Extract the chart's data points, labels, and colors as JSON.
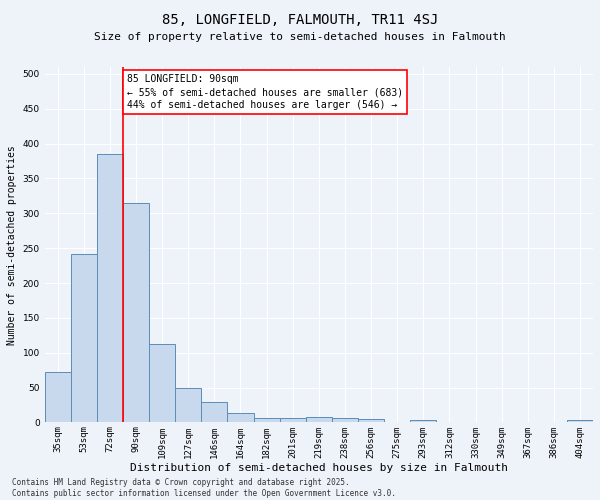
{
  "title1": "85, LONGFIELD, FALMOUTH, TR11 4SJ",
  "title2": "Size of property relative to semi-detached houses in Falmouth",
  "xlabel": "Distribution of semi-detached houses by size in Falmouth",
  "ylabel": "Number of semi-detached properties",
  "annotation_title": "85 LONGFIELD: 90sqm",
  "annotation_line1": "← 55% of semi-detached houses are smaller (683)",
  "annotation_line2": "44% of semi-detached houses are larger (546) →",
  "footer": "Contains HM Land Registry data © Crown copyright and database right 2025.\nContains public sector information licensed under the Open Government Licence v3.0.",
  "bar_categories": [
    "35sqm",
    "53sqm",
    "72sqm",
    "90sqm",
    "109sqm",
    "127sqm",
    "146sqm",
    "164sqm",
    "182sqm",
    "201sqm",
    "219sqm",
    "238sqm",
    "256sqm",
    "275sqm",
    "293sqm",
    "312sqm",
    "330sqm",
    "349sqm",
    "367sqm",
    "386sqm",
    "404sqm"
  ],
  "bar_values": [
    73,
    241,
    385,
    315,
    113,
    50,
    30,
    13,
    7,
    7,
    8,
    6,
    5,
    0,
    3,
    1,
    0,
    0,
    0,
    0,
    3
  ],
  "bar_color": "#c8d9ee",
  "bar_edge_color": "#5b8db8",
  "background_color": "#eef2f9",
  "grid_color": "#ffffff",
  "ylim": [
    0,
    510
  ],
  "yticks": [
    0,
    50,
    100,
    150,
    200,
    250,
    300,
    350,
    400,
    450,
    500
  ],
  "title1_fontsize": 10,
  "title2_fontsize": 8,
  "xlabel_fontsize": 8,
  "ylabel_fontsize": 7,
  "tick_fontsize": 6.5,
  "ann_fontsize": 7,
  "footer_fontsize": 5.5
}
